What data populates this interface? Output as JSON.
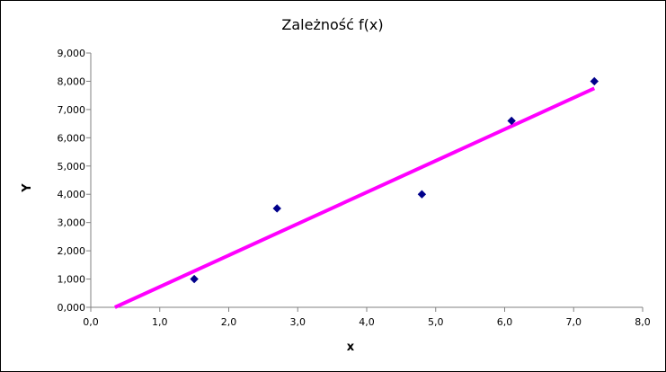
{
  "chart_data": {
    "type": "scatter",
    "title": "Zależność f(x)",
    "xlabel": "x",
    "ylabel": "Y",
    "xlim": [
      0,
      8
    ],
    "ylim": [
      0,
      9
    ],
    "x_ticks": [
      "0,0",
      "1,0",
      "2,0",
      "3,0",
      "4,0",
      "5,0",
      "6,0",
      "7,0",
      "8,0"
    ],
    "y_ticks": [
      "0,000",
      "1,000",
      "2,000",
      "3,000",
      "4,000",
      "5,000",
      "6,000",
      "7,000",
      "8,000",
      "9,000"
    ],
    "grid": false,
    "series": [
      {
        "type": "scatter",
        "x": [
          1.5,
          2.7,
          4.8,
          6.1,
          7.3
        ],
        "y": [
          1.0,
          3.5,
          4.0,
          6.6,
          8.0
        ],
        "color": "#00008B",
        "marker": "diamond"
      },
      {
        "type": "line",
        "x": [
          0.35,
          7.3
        ],
        "y": [
          0.0,
          7.75
        ],
        "color": "#FF00FF"
      }
    ]
  }
}
